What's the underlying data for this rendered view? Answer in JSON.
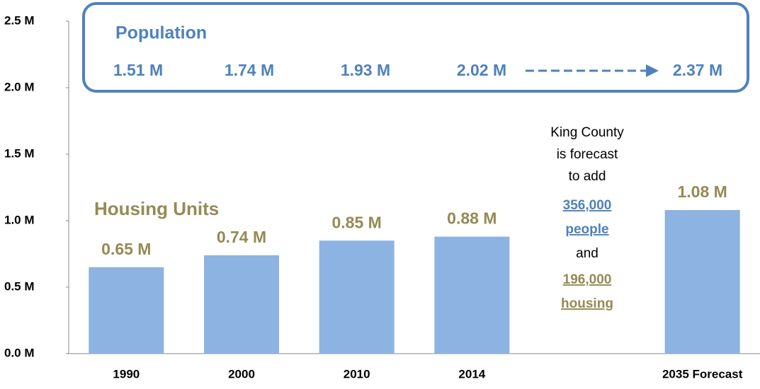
{
  "chart_data": {
    "type": "bar",
    "series_name": "Housing Units",
    "categories": [
      "1990",
      "2000",
      "2010",
      "2014",
      null,
      "2035 Forecast"
    ],
    "values": [
      0.65,
      0.74,
      0.85,
      0.88,
      null,
      1.08
    ],
    "value_labels": [
      "0.65 M",
      "0.74 M",
      "0.85 M",
      "0.88 M",
      null,
      "1.08 M"
    ],
    "color": "#8db3e2",
    "label_color": "#948a54",
    "ylim": [
      0,
      2.5
    ],
    "yticks": [
      {
        "value": 0,
        "label": "0.0 M"
      },
      {
        "value": 0.5,
        "label": "0.5 M"
      },
      {
        "value": 1,
        "label": "1.0 M"
      },
      {
        "value": 1.5,
        "label": "1.5 M"
      },
      {
        "value": 2,
        "label": "2.0 M"
      },
      {
        "value": 2.5,
        "label": "2.5 M"
      }
    ],
    "population": {
      "title": "Population",
      "color": "#4f81bd",
      "values": [
        1.51,
        1.74,
        1.93,
        2.02,
        2.37
      ],
      "value_labels": [
        "1.51 M",
        "1.74 M",
        "1.93 M",
        "2.02 M",
        "2.37 M"
      ]
    },
    "annotation": {
      "lines": [
        "King County",
        "is forecast",
        "to add"
      ],
      "people": [
        "356,000",
        "people"
      ],
      "joiner": "and",
      "housing": [
        "196,000",
        "housing"
      ]
    }
  }
}
